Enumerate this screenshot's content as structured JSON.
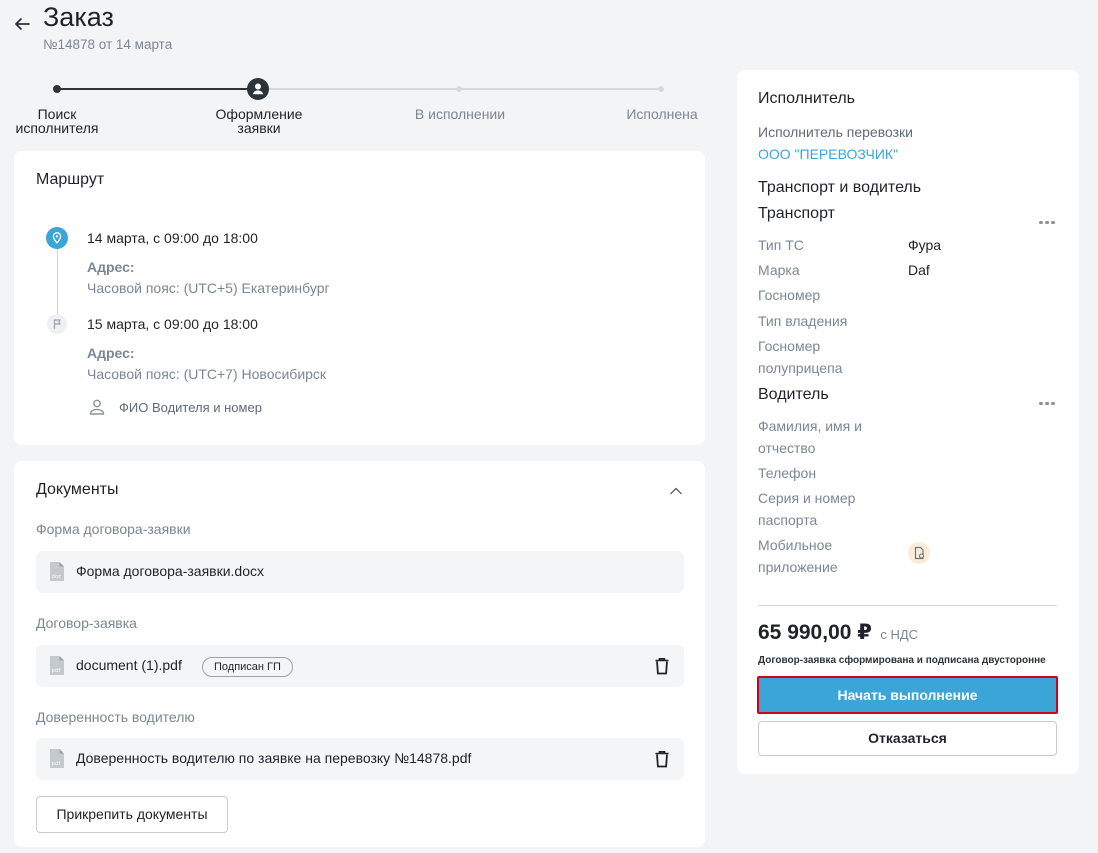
{
  "header": {
    "title": "Заказ",
    "subtitle": "№14878 от 14 марта"
  },
  "stepper": {
    "steps": [
      {
        "label_line1": "Поиск",
        "label_line2": "исполнителя",
        "state": "done"
      },
      {
        "label_line1": "Оформление",
        "label_line2": "заявки",
        "state": "current"
      },
      {
        "label_line1": "В исполнении",
        "label_line2": "",
        "state": "pending"
      },
      {
        "label_line1": "Исполнена",
        "label_line2": "",
        "state": "pending"
      }
    ]
  },
  "route": {
    "title": "Маршрут",
    "points": [
      {
        "date": "14 марта, с 09:00 до 18:00",
        "address_label": "Адрес:",
        "timezone": "Часовой пояс: (UTC+5) Екатеринбург",
        "icon": "location-pin-icon"
      },
      {
        "date": "15 марта, с 09:00 до 18:00",
        "address_label": "Адрес:",
        "timezone": "Часовой пояс: (UTC+7) Новосибирск",
        "icon": "flag-icon"
      }
    ],
    "driver_placeholder": "ФИО Водителя и номер"
  },
  "documents": {
    "title": "Документы",
    "groups": [
      {
        "label": "Форма договора-заявки",
        "file": "Форма договора-заявки.docx",
        "file_ext": "doc",
        "badge": "",
        "deletable": false
      },
      {
        "label": "Договор-заявка",
        "file": "document (1).pdf",
        "file_ext": "pdf",
        "badge": "Подписан ГП",
        "deletable": true
      },
      {
        "label": "Доверенность водителю",
        "file": "Доверенность водителю по заявке на перевозку №14878.pdf",
        "file_ext": "pdf",
        "badge": "",
        "deletable": true
      }
    ],
    "attach_button": "Прикрепить документы"
  },
  "executor": {
    "title": "Исполнитель",
    "carrier_label": "Исполнитель перевозки",
    "carrier_name": "ООО \"ПЕРЕВОЗЧИК\"",
    "transport_and_driver": "Транспорт и водитель",
    "transport": {
      "title": "Транспорт",
      "fields": [
        {
          "label": "Тип ТС",
          "value": "Фура"
        },
        {
          "label": "Марка",
          "value": "Daf"
        },
        {
          "label": "Госномер",
          "value": ""
        },
        {
          "label": "Тип владения",
          "value": ""
        },
        {
          "label_line1": "Госномер",
          "label_line2": "полуприцепа",
          "value": ""
        }
      ]
    },
    "driver": {
      "title": "Водитель",
      "fields": [
        {
          "label_line1": "Фамилия, имя и",
          "label_line2": "отчество"
        },
        {
          "label_line1": "Телефон",
          "label_line2": ""
        },
        {
          "label_line1": "Серия и номер",
          "label_line2": "паспорта"
        },
        {
          "label_line1": "Мобильное",
          "label_line2": "приложение"
        }
      ]
    },
    "price": "65 990,00 ₽",
    "vat": "с НДС",
    "status_note": "Договор-заявка сформирована и подписана двусторонне",
    "start_button": "Начать выполнение",
    "decline_button": "Отказаться"
  },
  "colors": {
    "accent": "#3ba5d8",
    "highlight_border": "#d0021b",
    "text_primary": "#1f2328",
    "text_muted": "#7b8794",
    "step_done": "#2b343b",
    "step_pending": "#d5d9dd"
  }
}
